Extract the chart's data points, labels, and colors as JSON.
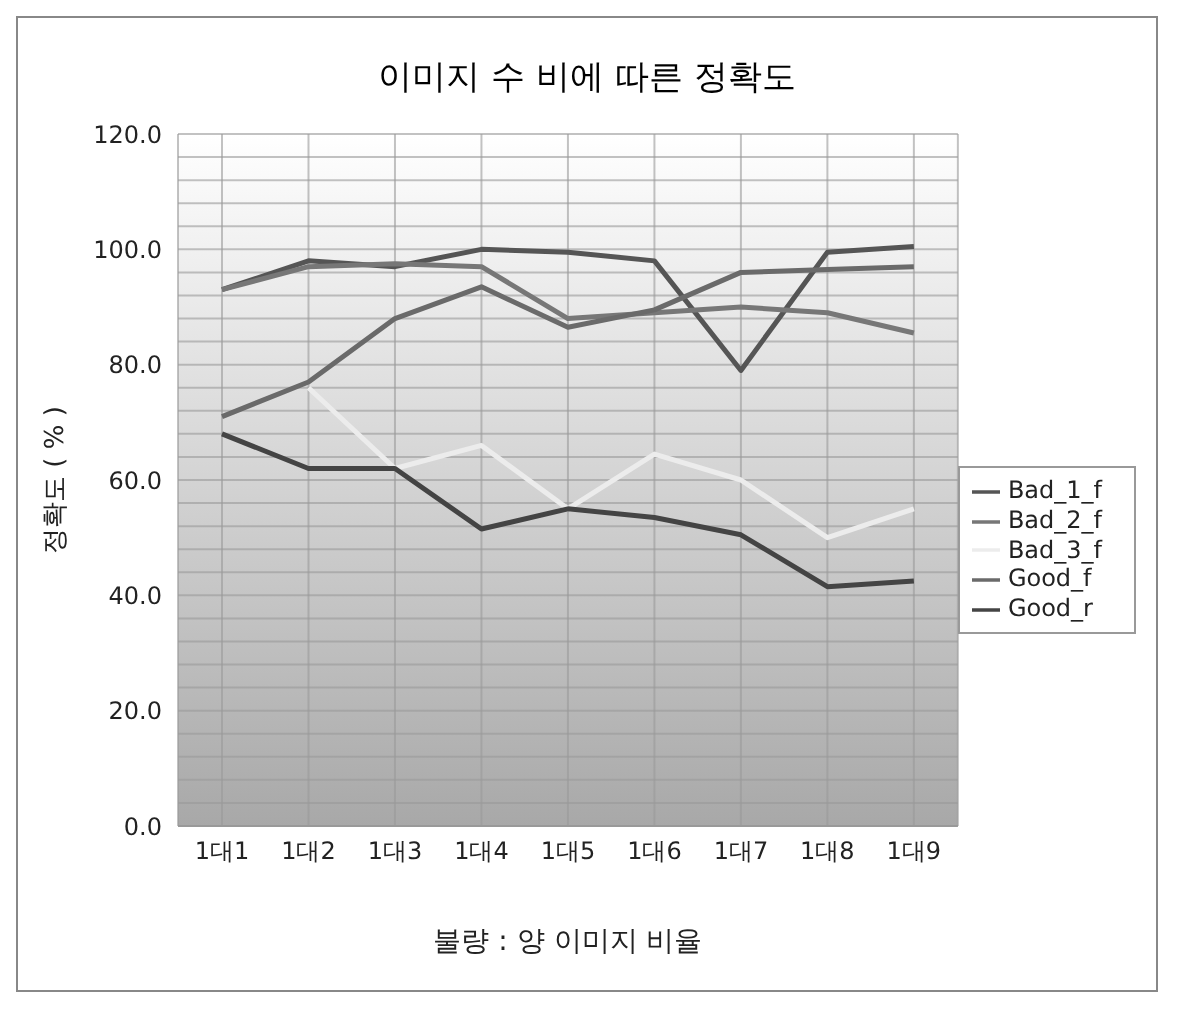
{
  "chart_data": {
    "type": "line",
    "title": "이미지 수 비에 따른 정확도",
    "xlabel": "불량 : 양 이미지 비율",
    "ylabel": "정확도 ( % )",
    "categories": [
      "1대1",
      "1대2",
      "1대3",
      "1대4",
      "1대5",
      "1대6",
      "1대7",
      "1대8",
      "1대9"
    ],
    "series": [
      {
        "name": "Bad_1_f",
        "color": "#555555",
        "values": [
          93,
          98,
          97,
          100,
          99.5,
          98,
          79,
          99.5,
          100.5
        ]
      },
      {
        "name": "Bad_2_f",
        "color": "#777777",
        "values": [
          93,
          97,
          97.5,
          97,
          88,
          89,
          90,
          89,
          85.5
        ]
      },
      {
        "name": "Bad_3_f",
        "color": "#ececec",
        "values": [
          null,
          76,
          62,
          66,
          55,
          64.5,
          60,
          50,
          55
        ]
      },
      {
        "name": "Good_f",
        "color": "#6a6a6a",
        "values": [
          71,
          77,
          88,
          93.5,
          86.5,
          89.5,
          96,
          96.5,
          97
        ]
      },
      {
        "name": "Good_r",
        "color": "#444444",
        "values": [
          68,
          62,
          62,
          51.5,
          55,
          53.5,
          50.5,
          41.5,
          42.5
        ]
      }
    ],
    "ylim": [
      0,
      120
    ],
    "yticks": [
      {
        "value": 0,
        "label": "0.0"
      },
      {
        "value": 20,
        "label": "20.0"
      },
      {
        "value": 40,
        "label": "40.0"
      },
      {
        "value": 60,
        "label": "60.0"
      },
      {
        "value": 80,
        "label": "80.0"
      },
      {
        "value": 100,
        "label": "100.0"
      },
      {
        "value": 120,
        "label": "120.0"
      }
    ],
    "grid": true,
    "legend": "right",
    "marker": "none",
    "line_style": "solid"
  }
}
